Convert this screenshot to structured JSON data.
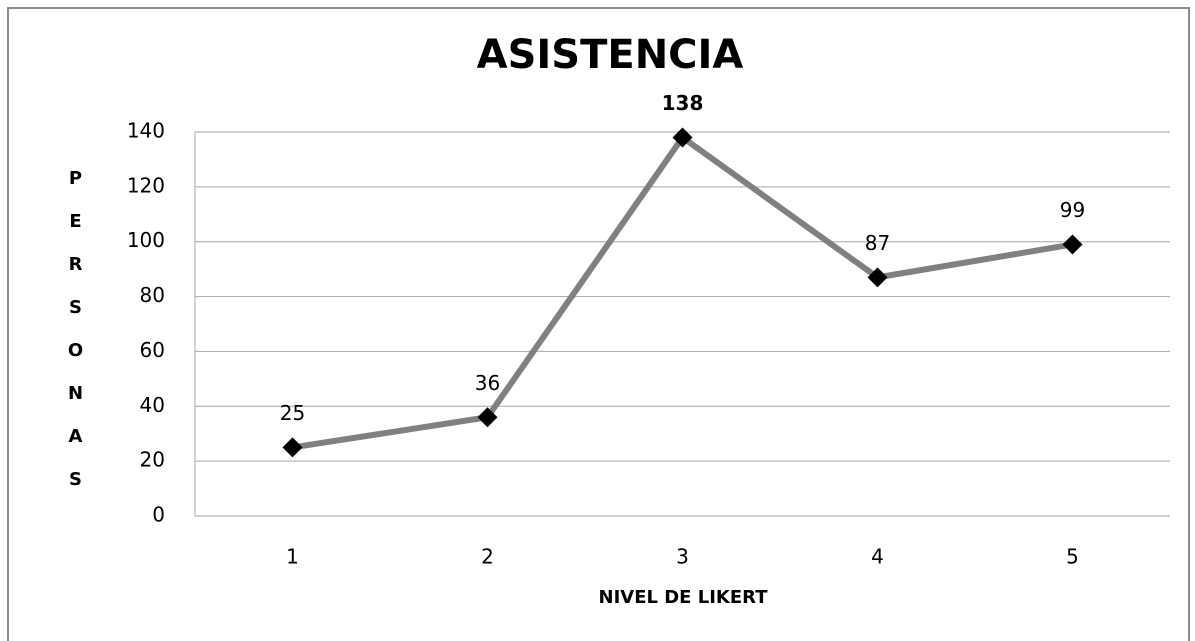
{
  "chart_data": {
    "type": "line",
    "title": "ASISTENCIA",
    "x_label": "NIVEL DE LIKERT",
    "y_label": "PERSONAS",
    "categories": [
      "1",
      "2",
      "3",
      "4",
      "5"
    ],
    "series": [
      {
        "name": "ASISTENCIA",
        "color": "#808080",
        "marker_color": "#000000",
        "values": [
          25,
          36,
          138,
          87,
          99
        ]
      }
    ],
    "value_label_colors": [
      "#000000",
      "#000000",
      "#c00000",
      "#000000",
      "#000000"
    ],
    "ylim": [
      0,
      140
    ],
    "yticks": [
      0,
      20,
      40,
      60,
      80,
      100,
      120,
      140
    ],
    "grid": true
  }
}
